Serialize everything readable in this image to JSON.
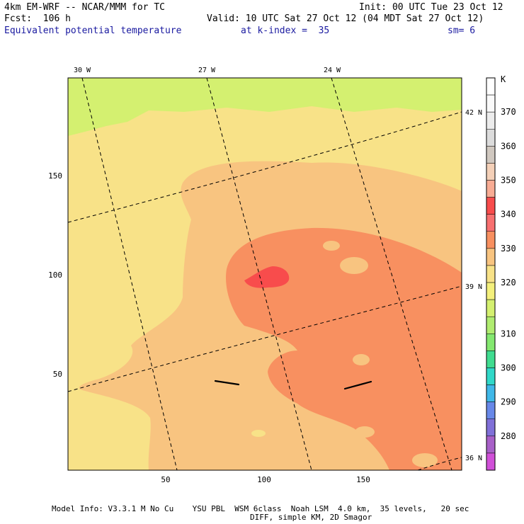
{
  "header": {
    "model_line": "4km EM-WRF -- NCAR/MMM for TC",
    "init_line": "Init: 00 UTC Tue 23 Oct 12",
    "fcst_line": "Fcst:  106 h",
    "valid_line": "Valid: 10 UTC Sat 27 Oct 12 (04 MDT Sat 27 Oct 12)",
    "field_name": "Equivalent potential temperature",
    "k_index": "at k-index =  35",
    "smoothing": "sm= 6"
  },
  "map": {
    "longitude_labels": [
      "30 W",
      "27 W",
      "24 W"
    ],
    "latitude_labels": [
      "42 N",
      "39 N",
      "36 N"
    ],
    "x_ticks": [
      "50",
      "100",
      "150"
    ],
    "y_ticks": [
      "150",
      "100",
      "50"
    ],
    "x_range": [
      0,
      200
    ],
    "y_range": [
      0,
      200
    ],
    "colorbar_unit": "K",
    "colorbar": [
      {
        "label": "",
        "color": "#ffffff"
      },
      {
        "label": "370",
        "color": "#fafafa"
      },
      {
        "label": "",
        "color": "#ececec"
      },
      {
        "label": "360",
        "color": "#dcdcdc"
      },
      {
        "label": "",
        "color": "#d0c8c0"
      },
      {
        "label": "350",
        "color": "#f4d0b8"
      },
      {
        "label": "",
        "color": "#f8ac94"
      },
      {
        "label": "340",
        "color": "#f84c4c"
      },
      {
        "label": "",
        "color": "#f87070"
      },
      {
        "label": "330",
        "color": "#f89060"
      },
      {
        "label": "",
        "color": "#f8c480"
      },
      {
        "label": "320",
        "color": "#f8e288"
      },
      {
        "label": "",
        "color": "#f4f07c"
      },
      {
        "label": "",
        "color": "#d4f070"
      },
      {
        "label": "310",
        "color": "#b0ec70"
      },
      {
        "label": "",
        "color": "#84e870"
      },
      {
        "label": "300",
        "color": "#40dc90"
      },
      {
        "label": "",
        "color": "#30d8c8"
      },
      {
        "label": "290",
        "color": "#40b8e8"
      },
      {
        "label": "",
        "color": "#6888e8"
      },
      {
        "label": "280",
        "color": "#8070d8"
      },
      {
        "label": "",
        "color": "#a860c8"
      },
      {
        "label": "",
        "color": "#d050d8"
      }
    ]
  },
  "footer": {
    "line1": "Model Info: V3.3.1 M No Cu    YSU PBL  WSM 6class  Noah LSM  4.0 km,  35 levels,   20 sec",
    "line2": "DIFF, simple KM, 2D Smagor"
  }
}
